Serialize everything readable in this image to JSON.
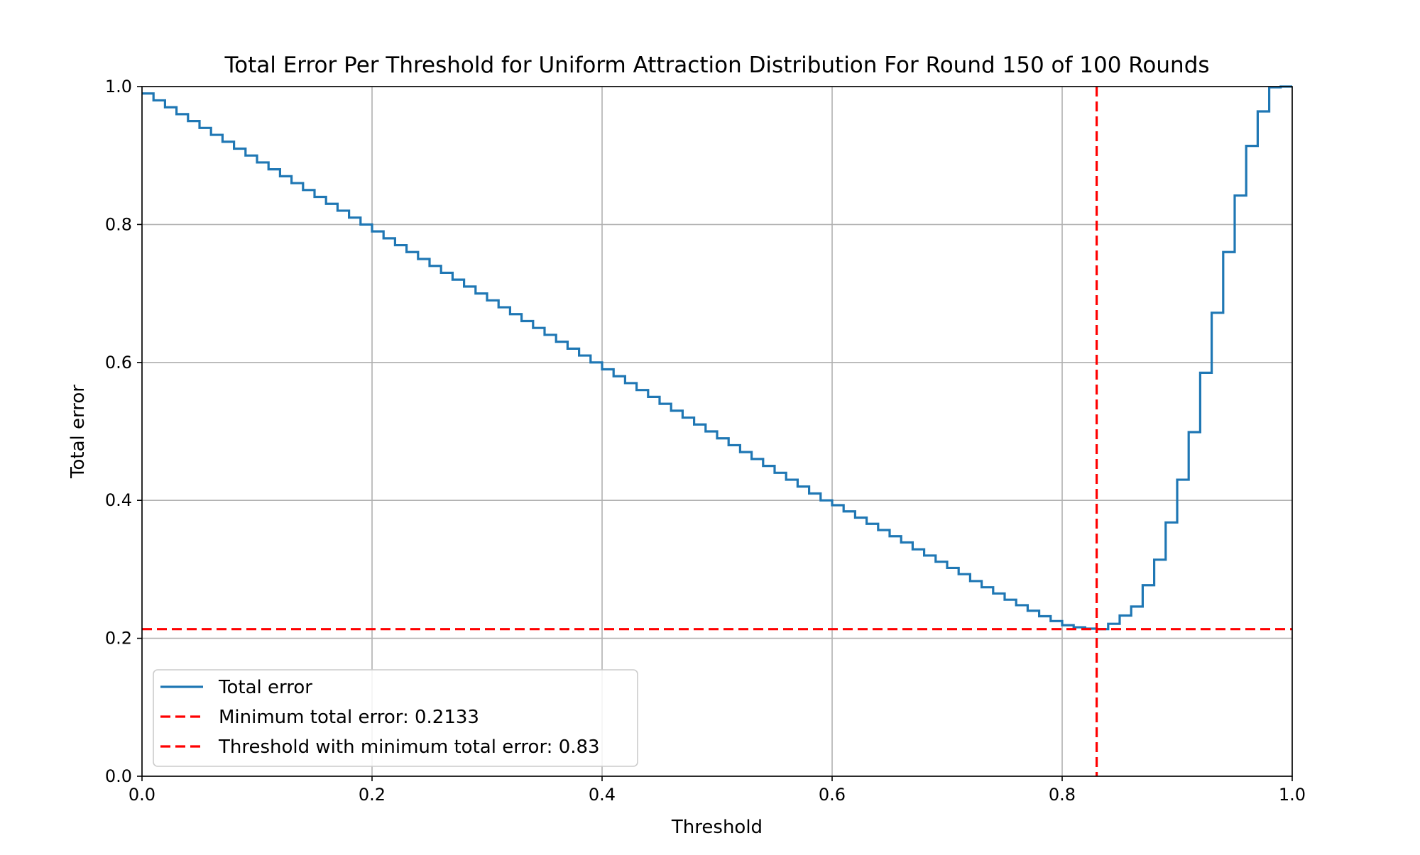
{
  "chart_data": {
    "type": "line",
    "title": "Total Error Per Threshold for Uniform Attraction Distribution For Round 150 of 100 Rounds",
    "xlabel": "Threshold",
    "ylabel": "Total error",
    "xlim": [
      0.0,
      1.0
    ],
    "ylim": [
      0.0,
      1.0
    ],
    "xticks": [
      "0.0",
      "0.2",
      "0.4",
      "0.6",
      "0.8",
      "1.0"
    ],
    "yticks": [
      "0.0",
      "0.2",
      "0.4",
      "0.6",
      "0.8",
      "1.0"
    ],
    "grid": true,
    "legend_position": "lower-left",
    "step": "post",
    "series": [
      {
        "name": "Total error",
        "color": "#1f77b4",
        "x": [
          0.0,
          0.01,
          0.02,
          0.03,
          0.04,
          0.05,
          0.06,
          0.07,
          0.08,
          0.09,
          0.1,
          0.11,
          0.12,
          0.13,
          0.14,
          0.15,
          0.16,
          0.17,
          0.18,
          0.19,
          0.2,
          0.21,
          0.22,
          0.23,
          0.24,
          0.25,
          0.26,
          0.27,
          0.28,
          0.29,
          0.3,
          0.31,
          0.32,
          0.33,
          0.34,
          0.35,
          0.36,
          0.37,
          0.38,
          0.39,
          0.4,
          0.41,
          0.42,
          0.43,
          0.44,
          0.45,
          0.46,
          0.47,
          0.48,
          0.49,
          0.5,
          0.51,
          0.52,
          0.53,
          0.54,
          0.55,
          0.56,
          0.57,
          0.58,
          0.59,
          0.6,
          0.61,
          0.62,
          0.63,
          0.64,
          0.65,
          0.66,
          0.67,
          0.68,
          0.69,
          0.7,
          0.71,
          0.72,
          0.73,
          0.74,
          0.75,
          0.76,
          0.77,
          0.78,
          0.79,
          0.8,
          0.81,
          0.82,
          0.83,
          0.84,
          0.85,
          0.86,
          0.87,
          0.88,
          0.89,
          0.9,
          0.91,
          0.92,
          0.93,
          0.94,
          0.95,
          0.96,
          0.97,
          0.98,
          0.99
        ],
        "y": [
          0.99,
          0.98,
          0.97,
          0.96,
          0.95,
          0.94,
          0.93,
          0.92,
          0.91,
          0.9,
          0.89,
          0.88,
          0.87,
          0.86,
          0.85,
          0.84,
          0.83,
          0.82,
          0.81,
          0.8,
          0.79,
          0.78,
          0.77,
          0.76,
          0.75,
          0.74,
          0.73,
          0.72,
          0.71,
          0.7,
          0.69,
          0.68,
          0.67,
          0.66,
          0.65,
          0.64,
          0.63,
          0.62,
          0.61,
          0.6,
          0.59,
          0.58,
          0.57,
          0.56,
          0.55,
          0.54,
          0.53,
          0.52,
          0.51,
          0.5,
          0.49,
          0.48,
          0.47,
          0.46,
          0.45,
          0.44,
          0.43,
          0.42,
          0.41,
          0.4,
          0.393,
          0.384,
          0.375,
          0.366,
          0.357,
          0.348,
          0.339,
          0.329,
          0.32,
          0.311,
          0.302,
          0.293,
          0.283,
          0.274,
          0.265,
          0.256,
          0.248,
          0.24,
          0.232,
          0.225,
          0.219,
          0.216,
          0.214,
          0.2133,
          0.221,
          0.233,
          0.246,
          0.277,
          0.314,
          0.368,
          0.43,
          0.499,
          0.585,
          0.672,
          0.76,
          0.842,
          0.914,
          0.964,
          0.999,
          1.0
        ]
      },
      {
        "name": "Minimum total error: 0.2133",
        "color": "#ff0000",
        "style": "dashed",
        "orientation": "horizontal",
        "value": 0.2133
      },
      {
        "name": "Threshold with minimum total error: 0.83",
        "color": "#ff0000",
        "style": "dashed",
        "orientation": "vertical",
        "value": 0.83
      }
    ]
  }
}
